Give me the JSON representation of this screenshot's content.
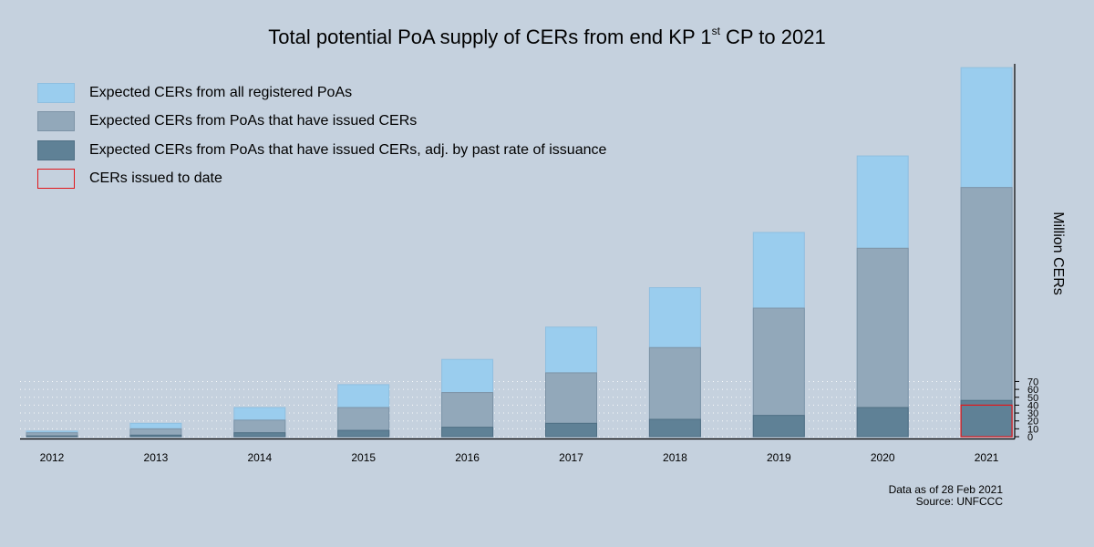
{
  "title": {
    "prefix": "Total potential PoA supply of CERs from end KP 1",
    "superscript": "st",
    "suffix": " CP to 2021"
  },
  "legend": [
    {
      "label": "Expected CERs from all registered PoAs",
      "color": "#9acdee",
      "border": "#8fbfe0"
    },
    {
      "label": "Expected CERs from PoAs that have issued CERs",
      "color": "#92a8ba",
      "border": "#7d93a6"
    },
    {
      "label": "Expected CERs from PoAs that have issued CERs, adj. by past rate of issuance",
      "color": "#5f8196",
      "border": "#4f6f84"
    },
    {
      "label": "CERs issued to date",
      "color": "none",
      "border": "#e0171b"
    }
  ],
  "notes": {
    "date": "Data as of 28 Feb 2021",
    "source": "Source: UNFCCC"
  },
  "chart_data": {
    "type": "bar",
    "title": "Total potential PoA supply of CERs from end KP 1st CP to 2021",
    "ylabel": "Million CERs",
    "categories": [
      "2012",
      "2013",
      "2014",
      "2015",
      "2016",
      "2017",
      "2018",
      "2019",
      "2020",
      "2021"
    ],
    "yticks": [
      0,
      10,
      20,
      30,
      40,
      50,
      60,
      70
    ],
    "ylim": [
      0,
      480
    ],
    "series": [
      {
        "name": "Expected CERs from all registered PoAs",
        "values": [
          7,
          17,
          37,
          66,
          98,
          139,
          189,
          259,
          356,
          468
        ]
      },
      {
        "name": "Expected CERs from PoAs that have issued CERs",
        "values": [
          5,
          10,
          21,
          37,
          56,
          81,
          113,
          163,
          239,
          316
        ]
      },
      {
        "name": "Expected CERs from PoAs that have issued CERs, adj. by past rate of issuance",
        "values": [
          1,
          2,
          5,
          8,
          12,
          17,
          22,
          27,
          37,
          46
        ]
      },
      {
        "name": "CERs issued to date",
        "values": [
          null,
          null,
          null,
          null,
          null,
          null,
          null,
          null,
          null,
          40
        ]
      }
    ],
    "grid": "dotted horizontal lines at ticks",
    "legend_position": "top-left"
  }
}
